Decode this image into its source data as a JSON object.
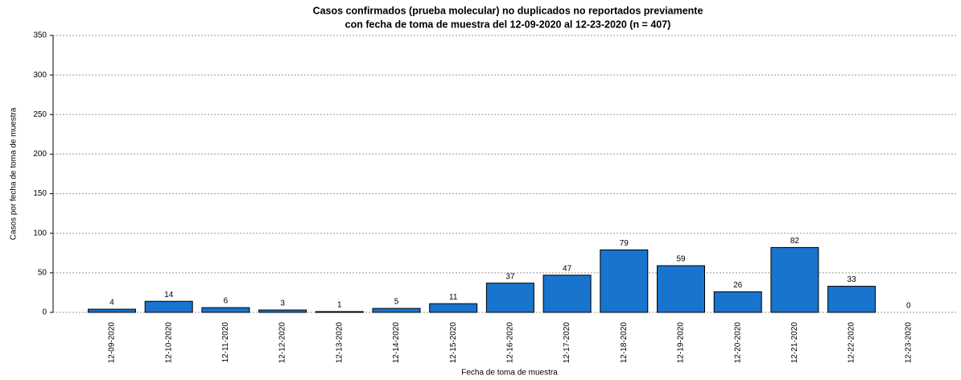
{
  "chart_data": {
    "type": "bar",
    "title": [
      "Casos confirmados (prueba molecular) no duplicados no reportados previamente",
      "con fecha de toma de muestra del 12-09-2020 al 12-23-2020 (n = 407)"
    ],
    "x_label": "Fecha de toma de muestra",
    "y_label": "Casos por fecha de toma de muestra",
    "categories": [
      "12-09-2020",
      "12-10-2020",
      "12-11-2020",
      "12-12-2020",
      "12-13-2020",
      "12-14-2020",
      "12-15-2020",
      "12-16-2020",
      "12-17-2020",
      "12-18-2020",
      "12-19-2020",
      "12-20-2020",
      "12-21-2020",
      "12-22-2020",
      "12-23-2020"
    ],
    "values": [
      4,
      14,
      6,
      3,
      1,
      5,
      11,
      37,
      47,
      79,
      59,
      26,
      82,
      33,
      0
    ],
    "color": "#1874cd",
    "ylim": [
      0,
      350
    ],
    "yticks": [
      0,
      50,
      100,
      150,
      200,
      250,
      300,
      350
    ],
    "grid": true
  }
}
